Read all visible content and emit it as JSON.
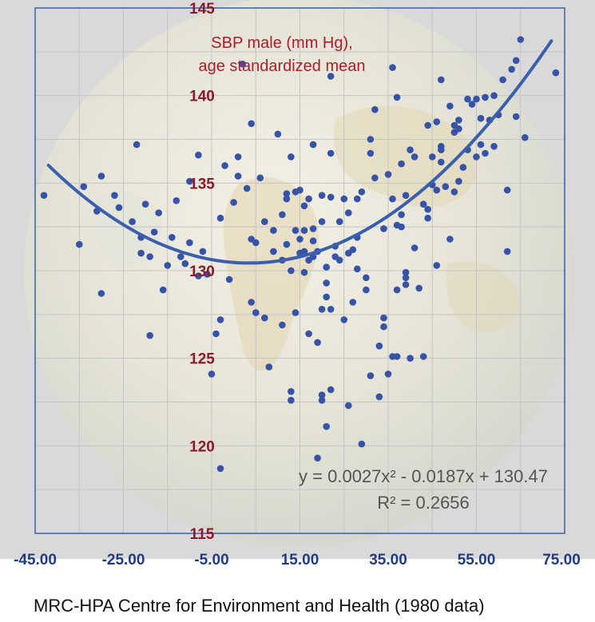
{
  "chart_data": {
    "type": "scatter",
    "title": "SBP male (mm Hg),\nage standardized mean",
    "title_lines": [
      "SBP male (mm Hg),",
      "age standardized mean"
    ],
    "xlabel": "",
    "ylabel": "",
    "xlim": [
      -45,
      75
    ],
    "ylim": [
      115,
      145
    ],
    "x_ticks": [
      -45,
      -25,
      -5,
      15,
      35,
      55,
      75
    ],
    "x_tick_labels": [
      "-45.00",
      "-25.00",
      "-5.00",
      "15.00",
      "35.00",
      "55.00",
      "75.00"
    ],
    "y_ticks": [
      115,
      120,
      125,
      130,
      135,
      140,
      145
    ],
    "y_tick_labels": [
      "115",
      "120",
      "125",
      "130",
      "135",
      "140",
      "145"
    ],
    "grid": true,
    "legend": false,
    "trendline": {
      "type": "polynomial",
      "order": 2,
      "coefficients": [
        0.0027,
        -0.0187,
        130.47
      ],
      "x_range": [
        -42,
        72
      ],
      "equation_label": "y = 0.0027x² - 0.0187x + 130.47",
      "r2_label": "R² = 0.2656"
    },
    "colors": {
      "points": "#3653a8",
      "trendline": "#3a5fad",
      "y_tick_text": "#8b1a2a",
      "x_tick_text": "#1f3c88",
      "title_text": "#b21a2c",
      "axis_frame": "#1f4fa0",
      "annotation_text": "#555555"
    },
    "series": [
      {
        "points": [
          [
            -43,
            134.3
          ],
          [
            -35,
            131.5
          ],
          [
            -34,
            134.8
          ],
          [
            -31,
            133.4
          ],
          [
            -30,
            135.4
          ],
          [
            -30,
            128.7
          ],
          [
            -27,
            134.3
          ],
          [
            -26,
            133.6
          ],
          [
            -23,
            132.8
          ],
          [
            -22,
            137.2
          ],
          [
            -21,
            131.9
          ],
          [
            -21,
            131.0
          ],
          [
            -20,
            133.8
          ],
          [
            -19,
            130.8
          ],
          [
            -19,
            126.3
          ],
          [
            -18,
            132.2
          ],
          [
            -17,
            133.3
          ],
          [
            -16,
            128.9
          ],
          [
            -15,
            130.3
          ],
          [
            -14,
            131.9
          ],
          [
            -13,
            134.0
          ],
          [
            -12,
            130.8
          ],
          [
            -11,
            130.4
          ],
          [
            -10,
            135.1
          ],
          [
            -10,
            131.6
          ],
          [
            -8,
            136.6
          ],
          [
            -8,
            129.7
          ],
          [
            -7,
            131.1
          ],
          [
            -6,
            129.8
          ],
          [
            -5,
            124.1
          ],
          [
            -4,
            126.4
          ],
          [
            -3,
            118.7
          ],
          [
            -3,
            133.0
          ],
          [
            -3,
            127.2
          ],
          [
            -2,
            136.0
          ],
          [
            -1,
            129.5
          ],
          [
            0,
            133.9
          ],
          [
            1,
            136.5
          ],
          [
            1,
            135.4
          ],
          [
            2,
            141.8
          ],
          [
            3,
            134.7
          ],
          [
            4,
            138.4
          ],
          [
            4,
            131.8
          ],
          [
            4,
            128.2
          ],
          [
            5,
            127.6
          ],
          [
            5,
            131.6
          ],
          [
            6,
            135.3
          ],
          [
            7,
            132.8
          ],
          [
            7,
            127.3
          ],
          [
            8,
            124.5
          ],
          [
            9,
            131.1
          ],
          [
            9,
            132.3
          ],
          [
            10,
            137.8
          ],
          [
            11,
            133.2
          ],
          [
            11,
            126.9
          ],
          [
            11,
            130.6
          ],
          [
            12,
            134.1
          ],
          [
            12,
            134.4
          ],
          [
            12,
            131.5
          ],
          [
            13,
            130.0
          ],
          [
            13,
            136.5
          ],
          [
            13,
            123.1
          ],
          [
            13,
            122.6
          ],
          [
            14,
            134.5
          ],
          [
            14,
            127.6
          ],
          [
            14,
            132.3
          ],
          [
            15,
            134.6
          ],
          [
            15,
            131.8
          ],
          [
            15,
            131.0
          ],
          [
            16,
            133.7
          ],
          [
            16,
            132.3
          ],
          [
            16,
            129.9
          ],
          [
            16,
            131.1
          ],
          [
            17,
            126.4
          ],
          [
            17,
            134.1
          ],
          [
            17,
            130.6
          ],
          [
            18,
            137.2
          ],
          [
            18,
            132.4
          ],
          [
            18,
            131.7
          ],
          [
            18,
            130.8
          ],
          [
            19,
            119.3
          ],
          [
            19,
            125.9
          ],
          [
            19,
            131.1
          ],
          [
            20,
            134.3
          ],
          [
            20,
            132.8
          ],
          [
            20,
            127.8
          ],
          [
            20,
            122.6
          ],
          [
            20,
            122.9
          ],
          [
            21,
            130.2
          ],
          [
            21,
            129.3
          ],
          [
            21,
            128.5
          ],
          [
            21,
            121.1
          ],
          [
            22,
            127.8
          ],
          [
            22,
            123.2
          ],
          [
            22,
            136.7
          ],
          [
            22,
            141.1
          ],
          [
            22,
            134.2
          ],
          [
            23,
            131.4
          ],
          [
            23,
            130.8
          ],
          [
            24,
            132.8
          ],
          [
            24,
            130.6
          ],
          [
            25,
            134.1
          ],
          [
            25,
            127.2
          ],
          [
            26,
            131.0
          ],
          [
            26,
            133.3
          ],
          [
            26,
            122.3
          ],
          [
            27,
            128.2
          ],
          [
            27,
            131.2
          ],
          [
            28,
            134.1
          ],
          [
            28,
            131.9
          ],
          [
            28,
            130.1
          ],
          [
            29,
            134.5
          ],
          [
            29,
            120.1
          ],
          [
            30,
            129.6
          ],
          [
            30,
            128.9
          ],
          [
            31,
            137.5
          ],
          [
            31,
            136.7
          ],
          [
            31,
            124.0
          ],
          [
            32,
            139.2
          ],
          [
            32,
            135.3
          ],
          [
            33,
            125.7
          ],
          [
            33,
            122.8
          ],
          [
            34,
            132.4
          ],
          [
            34,
            127.3
          ],
          [
            34,
            126.8
          ],
          [
            35,
            124.1
          ],
          [
            35,
            135.5
          ],
          [
            36,
            125.1
          ],
          [
            36,
            141.6
          ],
          [
            36,
            134.1
          ],
          [
            37,
            139.9
          ],
          [
            37,
            128.9
          ],
          [
            37,
            132.6
          ],
          [
            37,
            125.1
          ],
          [
            38,
            136.1
          ],
          [
            38,
            133.2
          ],
          [
            38,
            132.5
          ],
          [
            39,
            134.3
          ],
          [
            39,
            129.9
          ],
          [
            39,
            129.6
          ],
          [
            39,
            129.2
          ],
          [
            40,
            125.0
          ],
          [
            40,
            136.9
          ],
          [
            41,
            136.5
          ],
          [
            41,
            131.3
          ],
          [
            42,
            129.0
          ],
          [
            43,
            125.1
          ],
          [
            43,
            133.8
          ],
          [
            44,
            138.3
          ],
          [
            44,
            133.5
          ],
          [
            44,
            133.0
          ],
          [
            45,
            134.9
          ],
          [
            45,
            136.5
          ],
          [
            46,
            138.5
          ],
          [
            46,
            134.6
          ],
          [
            46,
            130.3
          ],
          [
            47,
            137.1
          ],
          [
            47,
            136.9
          ],
          [
            47,
            140.9
          ],
          [
            47,
            136.2
          ],
          [
            48,
            134.8
          ],
          [
            49,
            131.8
          ],
          [
            49,
            139.4
          ],
          [
            50,
            138.3
          ],
          [
            50,
            137.9
          ],
          [
            50,
            134.5
          ],
          [
            51,
            138.6
          ],
          [
            51,
            138.1
          ],
          [
            51,
            135.1
          ],
          [
            52,
            135.9
          ],
          [
            53,
            139.8
          ],
          [
            53,
            136.9
          ],
          [
            54,
            139.5
          ],
          [
            55,
            139.8
          ],
          [
            55,
            136.5
          ],
          [
            56,
            138.7
          ],
          [
            56,
            137.2
          ],
          [
            57,
            139.9
          ],
          [
            57,
            136.7
          ],
          [
            58,
            138.6
          ],
          [
            59,
            140.0
          ],
          [
            59,
            137.1
          ],
          [
            60,
            138.9
          ],
          [
            61,
            140.9
          ],
          [
            62,
            134.6
          ],
          [
            62,
            131.1
          ],
          [
            63,
            141.5
          ],
          [
            64,
            142.0
          ],
          [
            64,
            138.8
          ],
          [
            65,
            143.2
          ],
          [
            66,
            137.6
          ],
          [
            73,
            141.3
          ]
        ]
      }
    ]
  },
  "source": {
    "caption": "MRC-HPA Centre for Environment and Health (1980 data)"
  }
}
